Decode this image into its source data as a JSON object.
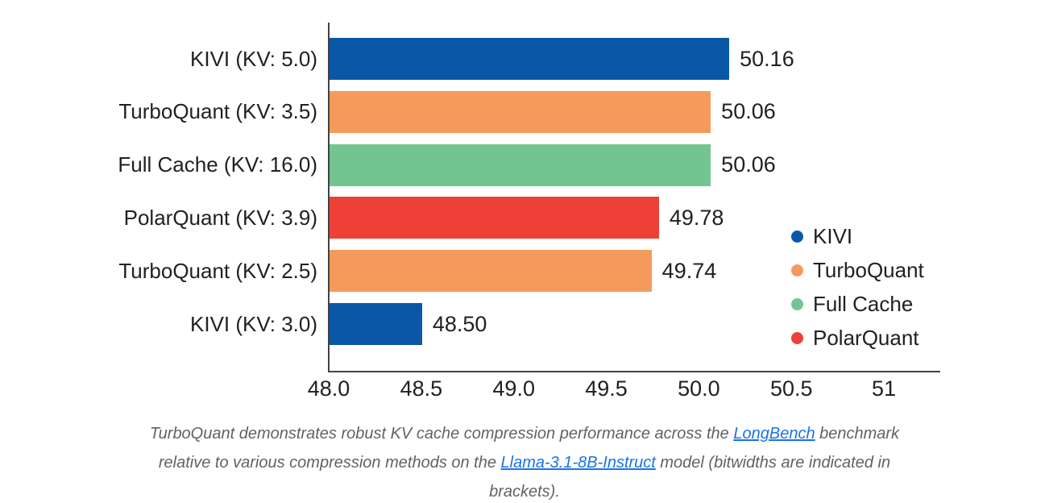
{
  "chart_data": {
    "type": "bar",
    "orientation": "horizontal",
    "title": "",
    "xlabel": "",
    "ylabel": "",
    "grid": false,
    "xlim": [
      48,
      51.3
    ],
    "xticks": {
      "values": [
        48.0,
        48.5,
        49.0,
        49.5,
        50.0,
        50.5,
        51.0
      ],
      "labels": [
        "48.0",
        "48.5",
        "49.0",
        "49.5",
        "50.0",
        "50.5",
        "51"
      ]
    },
    "categories": [
      "KIVI (KV: 5.0)",
      "TurboQuant (KV: 3.5)",
      "Full Cache (KV: 16.0)",
      "PolarQuant (KV: 3.9)",
      "TurboQuant (KV: 2.5)",
      "KIVI (KV: 3.0)"
    ],
    "values": [
      50.16,
      50.06,
      50.06,
      49.78,
      49.74,
      48.5
    ],
    "value_labels": [
      "50.16",
      "50.06",
      "50.06",
      "49.78",
      "49.74",
      "48.50"
    ],
    "bar_series": [
      "KIVI",
      "TurboQuant",
      "Full Cache",
      "PolarQuant",
      "TurboQuant",
      "KIVI"
    ],
    "series_colors": {
      "KIVI": "#0958a8",
      "TurboQuant": "#f49b5c",
      "Full Cache": "#72c591",
      "PolarQuant": "#ee4036"
    },
    "legend": {
      "position": "right-middle",
      "entries": [
        {
          "name": "KIVI",
          "color": "#0958a8"
        },
        {
          "name": "TurboQuant",
          "color": "#f49b5c"
        },
        {
          "name": "Full Cache",
          "color": "#72c591"
        },
        {
          "name": "PolarQuant",
          "color": "#ee4036"
        }
      ]
    }
  },
  "caption": {
    "text_color": "#5f6368",
    "link_color": "#1a73e8",
    "lines": [
      [
        {
          "text": "TurboQuant demonstrates robust KV cache compression performance across the ",
          "link": false
        },
        {
          "text": "LongBench",
          "link": true
        },
        {
          "text": " benchmark",
          "link": false
        }
      ],
      [
        {
          "text": "relative to various compression methods on the ",
          "link": false
        },
        {
          "text": "Llama-3.1-8B-Instruct",
          "link": true
        },
        {
          "text": " model (bitwidths are indicated in",
          "link": false
        }
      ],
      [
        {
          "text": "brackets).",
          "link": false
        }
      ]
    ]
  },
  "colors": {
    "axis": "#3f4245",
    "label_text": "#202124",
    "background": "#ffffff"
  }
}
